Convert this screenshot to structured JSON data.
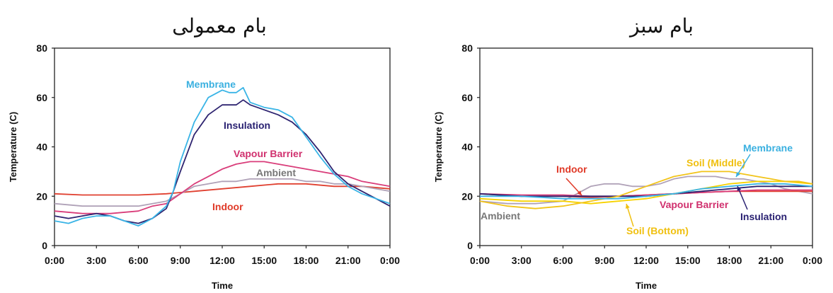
{
  "chart_data": [
    {
      "type": "line",
      "title": "بام معمولی",
      "xlabel": "Time",
      "ylabel": "Temperature (C)",
      "ylim": [
        0,
        80
      ],
      "yticks": [
        0,
        20,
        40,
        60,
        80
      ],
      "xlim": [
        0,
        24
      ],
      "xticks": [
        "0:00",
        "3:00",
        "6:00",
        "9:00",
        "12:00",
        "15:00",
        "18:00",
        "21:00",
        "0:00"
      ],
      "grid": false,
      "series": [
        {
          "name": "Membrane",
          "color": "#39b4e6",
          "x": [
            0,
            1,
            2,
            3,
            4,
            5,
            6,
            7,
            8,
            8.5,
            9,
            10,
            11,
            12,
            12.5,
            13,
            13.5,
            14,
            15,
            16,
            17,
            18,
            19,
            20,
            21,
            22,
            23,
            24
          ],
          "y": [
            10,
            9,
            11,
            12,
            12,
            10,
            8,
            11,
            16,
            22,
            34,
            50,
            60,
            63,
            62,
            62,
            64,
            58,
            56,
            55,
            52,
            44,
            36,
            29,
            24,
            21,
            19,
            17
          ]
        },
        {
          "name": "Insulation",
          "color": "#2e2470",
          "x": [
            0,
            1,
            2,
            3,
            4,
            5,
            6,
            7,
            8,
            8.5,
            9,
            10,
            11,
            12,
            13,
            13.5,
            14,
            15,
            16,
            17,
            18,
            19,
            20,
            21,
            22,
            23,
            24
          ],
          "y": [
            12,
            11,
            12,
            13,
            12,
            10,
            9,
            11,
            15,
            22,
            30,
            45,
            53,
            57,
            57,
            59,
            57,
            55,
            53,
            50,
            45,
            38,
            30,
            25,
            22,
            19,
            16
          ]
        },
        {
          "name": "Vapour Barrier",
          "color": "#d93d7a",
          "x": [
            0,
            2,
            4,
            6,
            7,
            8,
            9,
            10,
            11,
            12,
            13,
            14,
            15,
            16,
            17,
            18,
            19,
            20,
            21,
            22,
            23,
            24
          ],
          "y": [
            14,
            13,
            13,
            14,
            16,
            17,
            21,
            25,
            28,
            31,
            33,
            34,
            34,
            33,
            32,
            31,
            30,
            29,
            28,
            26,
            25,
            24
          ]
        },
        {
          "name": "Ambient",
          "color": "#b0a2b8",
          "x": [
            0,
            2,
            4,
            6,
            7,
            8,
            9,
            10,
            11,
            12,
            13,
            14,
            15,
            16,
            17,
            18,
            19,
            20,
            21,
            22,
            23,
            24
          ],
          "y": [
            17,
            16,
            16,
            16,
            17,
            18,
            21,
            24,
            25,
            26,
            26,
            27,
            27,
            27,
            27,
            26,
            26,
            25,
            25,
            24,
            23,
            22
          ]
        },
        {
          "name": "Indoor",
          "color": "#e04030",
          "x": [
            0,
            2,
            4,
            6,
            8,
            10,
            12,
            14,
            16,
            18,
            20,
            22,
            24
          ],
          "y": [
            21,
            20.5,
            20.5,
            20.5,
            21,
            22,
            23,
            24,
            25,
            25,
            24,
            24,
            23
          ]
        }
      ]
    },
    {
      "type": "line",
      "title": "بام سبز",
      "xlabel": "Time",
      "ylabel": "Temperature (C)",
      "ylim": [
        0,
        80
      ],
      "yticks": [
        0,
        20,
        40,
        60,
        80
      ],
      "xlim": [
        0,
        24
      ],
      "xticks": [
        "0:00",
        "3:00",
        "6:00",
        "9:00",
        "12:00",
        "15:00",
        "18:00",
        "21:00",
        "0:00"
      ],
      "grid": false,
      "series": [
        {
          "name": "Membrane",
          "color": "#39b4e6",
          "x": [
            0,
            3,
            6,
            8,
            10,
            12,
            14,
            16,
            18,
            20,
            22,
            24
          ],
          "y": [
            20,
            20,
            19,
            19,
            19,
            20,
            21,
            23,
            24,
            25,
            25,
            24
          ]
        },
        {
          "name": "Soil (Middle)",
          "color": "#f2c41a",
          "x": [
            0,
            2,
            4,
            6,
            8,
            10,
            12,
            13,
            14,
            15,
            16,
            17,
            18,
            19,
            20,
            21,
            22,
            23,
            24
          ],
          "y": [
            18,
            16,
            15,
            16,
            18,
            20,
            24,
            26,
            28,
            29,
            30,
            30,
            30,
            29,
            28,
            27,
            26,
            26,
            25
          ]
        },
        {
          "name": "Soil (Bottom)",
          "color": "#f7d200",
          "x": [
            0,
            3,
            6,
            8,
            10,
            12,
            14,
            16,
            18,
            20,
            22,
            24
          ],
          "y": [
            19,
            18,
            18,
            17,
            18,
            19,
            21,
            23,
            25,
            26,
            26,
            25
          ]
        },
        {
          "name": "Insulation",
          "color": "#2e2470",
          "x": [
            0,
            3,
            6,
            8,
            10,
            12,
            14,
            16,
            18,
            20,
            22,
            24
          ],
          "y": [
            21,
            20,
            20,
            20,
            20,
            20,
            21,
            22,
            23,
            24,
            24,
            24
          ]
        },
        {
          "name": "Vapour Barrier",
          "color": "#d93d7a",
          "x": [
            0,
            3,
            6,
            8,
            10,
            12,
            14,
            16,
            18,
            20,
            22,
            24
          ],
          "y": [
            21,
            20.5,
            20.5,
            20,
            20,
            20.5,
            21,
            21.5,
            22,
            22.5,
            22.5,
            22.5
          ]
        },
        {
          "name": "Indoor",
          "color": "#e04030",
          "x": [
            0,
            3,
            6,
            8,
            10,
            12,
            14,
            16,
            18,
            20,
            22,
            24
          ],
          "y": [
            21,
            20,
            20,
            19.5,
            20,
            20.5,
            21,
            21.5,
            22,
            22,
            22,
            22
          ]
        },
        {
          "name": "Ambient",
          "color": "#b0a2b8",
          "x": [
            0,
            2,
            4,
            6,
            7,
            8,
            9,
            10,
            11,
            12,
            13,
            14,
            15,
            16,
            17,
            18,
            19,
            20,
            21,
            22,
            23,
            24
          ],
          "y": [
            18,
            17,
            17,
            18,
            21,
            24,
            25,
            25,
            24,
            24,
            25,
            27,
            28,
            28,
            28,
            27,
            27,
            26,
            25,
            23,
            22,
            21
          ]
        }
      ]
    }
  ]
}
